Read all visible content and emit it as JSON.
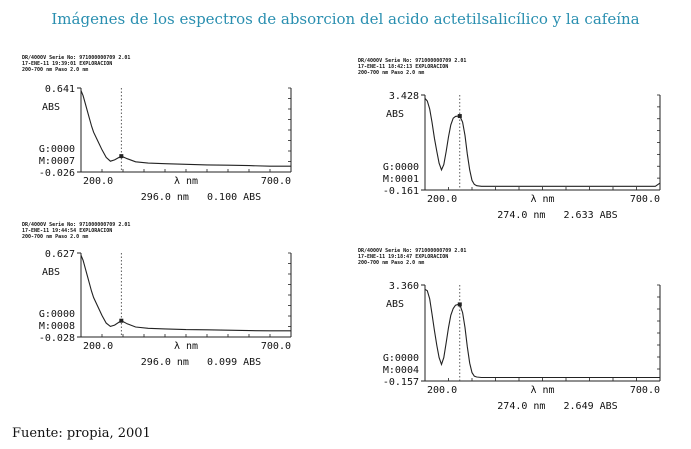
{
  "title": "Imágenes de los espectros de absorcion del acido actetilsalicílico y la cafeína",
  "footer": "Fuente: propia, 2001",
  "chart_data": [
    {
      "type": "line",
      "header": [
        "DR/4000V Serie No: 971000000709 2.01",
        "17-ENE-11 19:39:01 EXPLORACION",
        "200-700 nm Paso 2.0 nm"
      ],
      "y_top_label": "0.641",
      "y_bottom_label": "-0.026",
      "y_unit": "ABS",
      "g_label": "G:0000",
      "m_label": "M:0007",
      "x_start_label": "200.0",
      "x_end_label": "700.0",
      "x_axis_label": "λ nm",
      "readout": "296.0 nm   0.100 ABS",
      "ylim": [
        -0.026,
        0.641
      ],
      "xlim": [
        200,
        700
      ],
      "cursor_x": 296,
      "x": [
        200,
        205,
        210,
        215,
        220,
        225,
        230,
        240,
        250,
        260,
        270,
        280,
        296,
        310,
        330,
        360,
        400,
        450,
        500,
        550,
        600,
        650,
        700
      ],
      "y": [
        0.62,
        0.58,
        0.52,
        0.46,
        0.4,
        0.34,
        0.29,
        0.22,
        0.15,
        0.09,
        0.06,
        0.07,
        0.1,
        0.08,
        0.055,
        0.045,
        0.04,
        0.035,
        0.03,
        0.028,
        0.025,
        0.02,
        0.02
      ]
    },
    {
      "type": "line",
      "header": [
        "DR/4000V Serie No: 971000000709 2.01",
        "17-ENE-11 19:44:54 EXPLORACION",
        "200-700 nm Paso 2.0 nm"
      ],
      "y_top_label": "0.627",
      "y_bottom_label": "-0.028",
      "y_unit": "ABS",
      "g_label": "G:0000",
      "m_label": "M:0008",
      "x_start_label": "200.0",
      "x_end_label": "700.0",
      "x_axis_label": "λ nm",
      "readout": "296.0 nm   0.099 ABS",
      "ylim": [
        -0.028,
        0.627
      ],
      "xlim": [
        200,
        700
      ],
      "cursor_x": 296,
      "x": [
        200,
        205,
        210,
        215,
        220,
        225,
        230,
        240,
        250,
        260,
        270,
        280,
        296,
        310,
        330,
        360,
        400,
        450,
        500,
        550,
        600,
        650,
        700
      ],
      "y": [
        0.61,
        0.57,
        0.51,
        0.45,
        0.39,
        0.33,
        0.28,
        0.21,
        0.14,
        0.08,
        0.055,
        0.065,
        0.099,
        0.075,
        0.05,
        0.04,
        0.035,
        0.03,
        0.028,
        0.025,
        0.022,
        0.02,
        0.02
      ]
    },
    {
      "type": "line",
      "header": [
        "DR/4000V Serie No: 971000000709 2.01",
        "17-ENE-11 18:42:13 EXPLORACION",
        "200-700 nm Paso 2.0 nm"
      ],
      "y_top_label": "3.428",
      "y_bottom_label": "-0.161",
      "y_unit": "ABS",
      "g_label": "G:0000",
      "m_label": "M:0001",
      "x_start_label": "200.0",
      "x_end_label": "700.0",
      "x_axis_label": "λ nm",
      "readout": "274.0 nm   2.633 ABS",
      "ylim": [
        -0.161,
        3.428
      ],
      "xlim": [
        200,
        700
      ],
      "cursor_x": 274,
      "x": [
        200,
        205,
        210,
        215,
        220,
        225,
        230,
        235,
        240,
        245,
        250,
        255,
        260,
        265,
        270,
        274,
        280,
        285,
        290,
        295,
        300,
        305,
        310,
        320,
        400,
        500,
        600,
        690,
        700
      ],
      "y": [
        3.3,
        3.2,
        2.9,
        2.4,
        1.8,
        1.3,
        0.85,
        0.6,
        0.8,
        1.3,
        1.85,
        2.3,
        2.55,
        2.62,
        2.63,
        2.633,
        2.4,
        1.9,
        1.2,
        0.6,
        0.2,
        0.05,
        0.0,
        -0.02,
        -0.02,
        -0.02,
        -0.02,
        -0.02,
        0.1
      ]
    },
    {
      "type": "line",
      "header": [
        "DR/4000V Serie No: 971000000709 2.01",
        "17-ENE-11 19:18:47 EXPLORACION",
        "200-700 nm Paso 2.0 nm"
      ],
      "y_top_label": "3.360",
      "y_bottom_label": "-0.157",
      "y_unit": "ABS",
      "g_label": "G:0000",
      "m_label": "M:0004",
      "x_start_label": "200.0",
      "x_end_label": "700.0",
      "x_axis_label": "λ nm",
      "readout": "274.0 nm   2.649 ABS",
      "ylim": [
        -0.157,
        3.36
      ],
      "xlim": [
        200,
        700
      ],
      "cursor_x": 274,
      "x": [
        200,
        205,
        210,
        215,
        220,
        225,
        230,
        235,
        240,
        245,
        250,
        255,
        260,
        265,
        270,
        274,
        280,
        285,
        290,
        295,
        300,
        305,
        310,
        320,
        400,
        500,
        600,
        700
      ],
      "y": [
        3.2,
        3.15,
        2.85,
        2.3,
        1.7,
        1.15,
        0.7,
        0.45,
        0.7,
        1.25,
        1.8,
        2.25,
        2.5,
        2.62,
        2.645,
        2.649,
        2.35,
        1.8,
        1.1,
        0.5,
        0.15,
        0.02,
        -0.01,
        -0.03,
        -0.03,
        -0.03,
        -0.03,
        -0.03
      ]
    }
  ]
}
